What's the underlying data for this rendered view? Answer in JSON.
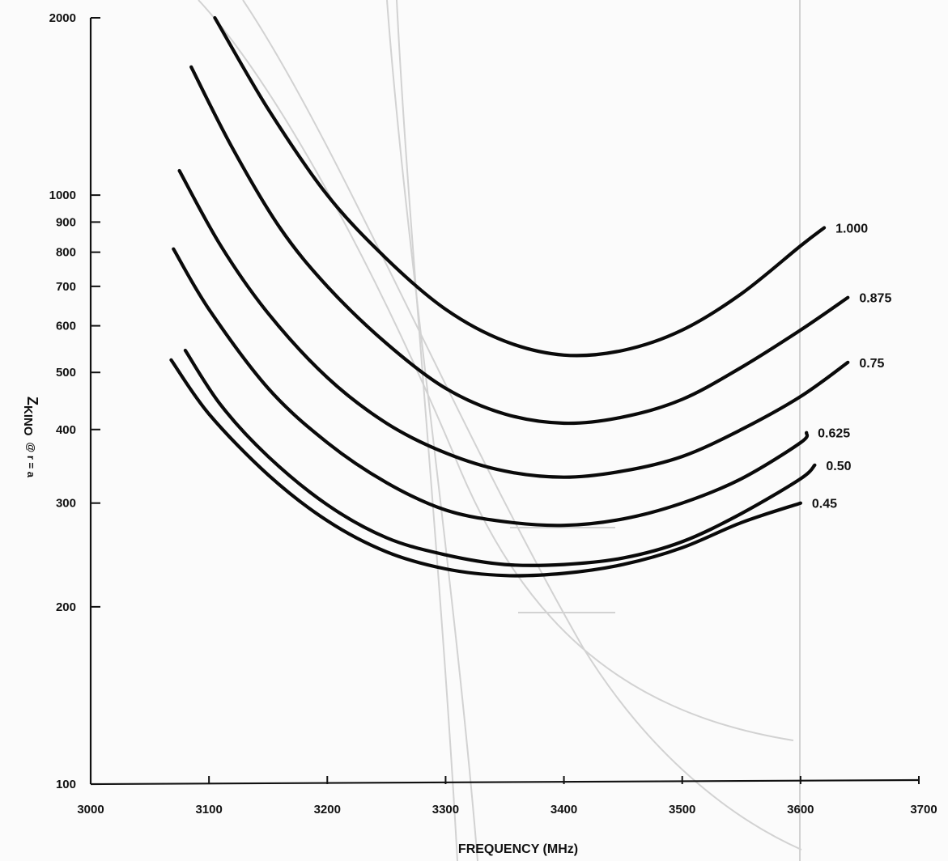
{
  "chart_data": {
    "type": "line",
    "xlabel": "FREQUENCY (MHz)",
    "ylabel_main": "Z",
    "ylabel_sub": "KINO",
    "ylabel_suffix": "@ r = a",
    "xlim": [
      3000,
      3700
    ],
    "ylim": [
      100,
      2000
    ],
    "yscale": "log",
    "grid": false,
    "x_ticks": [
      "3000",
      "3100",
      "3200",
      "3300",
      "3400",
      "3500",
      "3600",
      "3700"
    ],
    "y_ticks": [
      "100",
      "200",
      "300",
      "400",
      "500",
      "600",
      "700",
      "800",
      "900",
      "1000",
      "2000"
    ],
    "series": [
      {
        "name": "1.000",
        "x": [
          3105,
          3150,
          3200,
          3250,
          3300,
          3350,
          3400,
          3450,
          3500,
          3550,
          3600,
          3620
        ],
        "y": [
          2000,
          1400,
          1000,
          780,
          640,
          565,
          535,
          545,
          590,
          680,
          820,
          880
        ]
      },
      {
        "name": "0.875",
        "x": [
          3085,
          3120,
          3160,
          3200,
          3250,
          3300,
          3350,
          3400,
          3450,
          3500,
          3550,
          3600,
          3640
        ],
        "y": [
          1650,
          1200,
          880,
          700,
          560,
          470,
          425,
          410,
          420,
          450,
          510,
          590,
          670
        ]
      },
      {
        "name": "0.75",
        "x": [
          3075,
          3110,
          3150,
          3200,
          3250,
          3300,
          3350,
          3400,
          3450,
          3500,
          3550,
          3600,
          3640
        ],
        "y": [
          1100,
          820,
          630,
          490,
          410,
          365,
          340,
          332,
          340,
          360,
          400,
          455,
          520
        ]
      },
      {
        "name": "0.625",
        "x": [
          3070,
          3100,
          3150,
          3200,
          3250,
          3300,
          3350,
          3400,
          3450,
          3500,
          3550,
          3600,
          3605
        ],
        "y": [
          810,
          640,
          470,
          380,
          325,
          292,
          279,
          275,
          282,
          300,
          330,
          380,
          395
        ]
      },
      {
        "name": "0.50",
        "x": [
          3080,
          3110,
          3150,
          3200,
          3250,
          3300,
          3350,
          3400,
          3450,
          3500,
          3550,
          3600,
          3612
        ],
        "y": [
          545,
          440,
          360,
          298,
          262,
          245,
          236,
          236,
          242,
          258,
          288,
          330,
          348
        ]
      },
      {
        "name": "0.45",
        "x": [
          3068,
          3100,
          3150,
          3200,
          3250,
          3300,
          3350,
          3400,
          3450,
          3500,
          3550,
          3600
        ],
        "y": [
          525,
          425,
          335,
          280,
          248,
          232,
          226,
          228,
          236,
          252,
          278,
          300
        ]
      }
    ]
  }
}
